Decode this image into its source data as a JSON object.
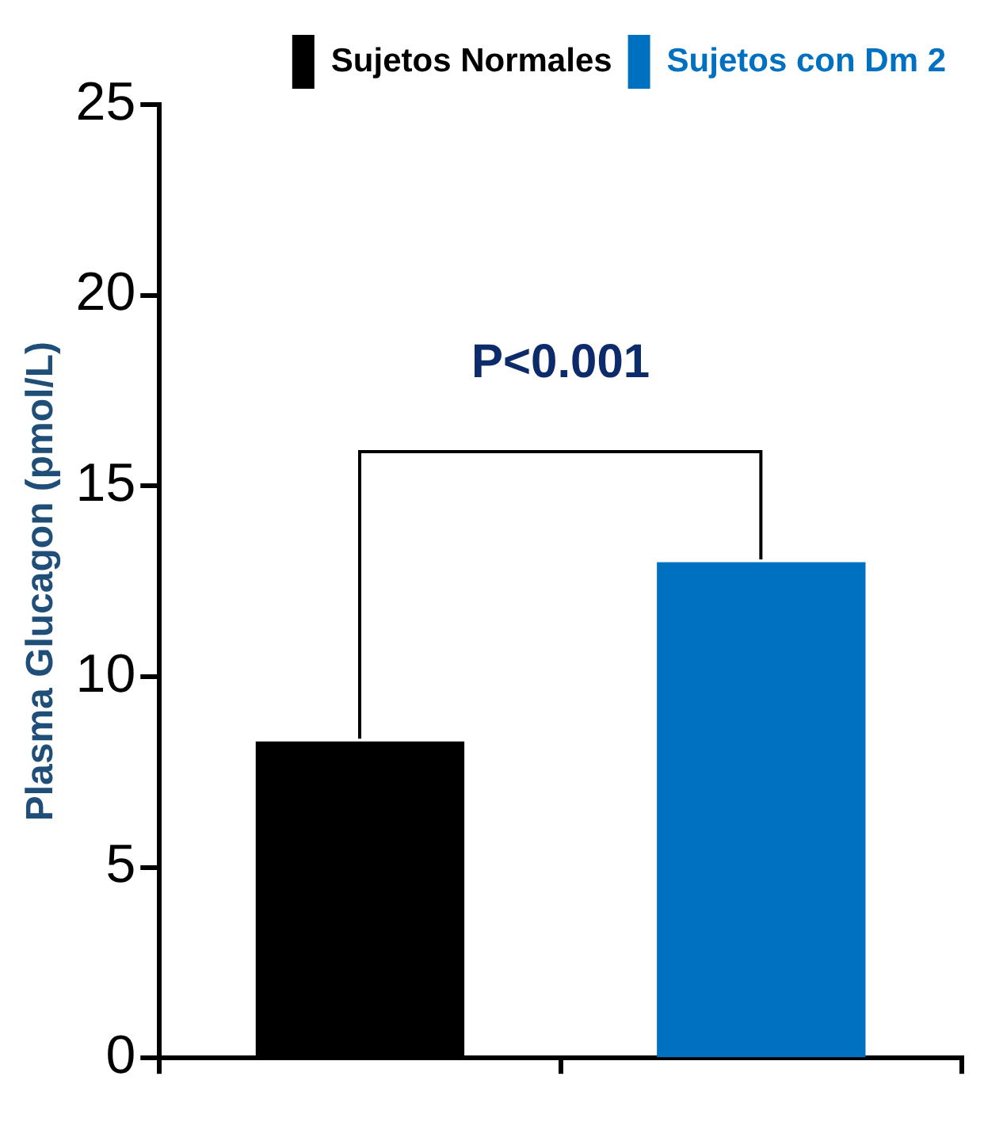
{
  "chart_data": {
    "type": "bar",
    "ylabel": "Plasma Glucagon (pmol/L)",
    "categories": [
      null,
      null
    ],
    "series": [
      {
        "name": "Sujetos Normales",
        "color": "#000000",
        "values": [
          8.3,
          null
        ]
      },
      {
        "name": "Sujetos con Dm 2",
        "color": "#0070c0",
        "values": [
          null,
          13.0
        ]
      }
    ],
    "ylim": [
      0,
      25
    ],
    "yticks": [
      0,
      5,
      10,
      15,
      20,
      25
    ],
    "grid": false,
    "legend": "top right",
    "annotations": [
      "P<0.001"
    ]
  }
}
